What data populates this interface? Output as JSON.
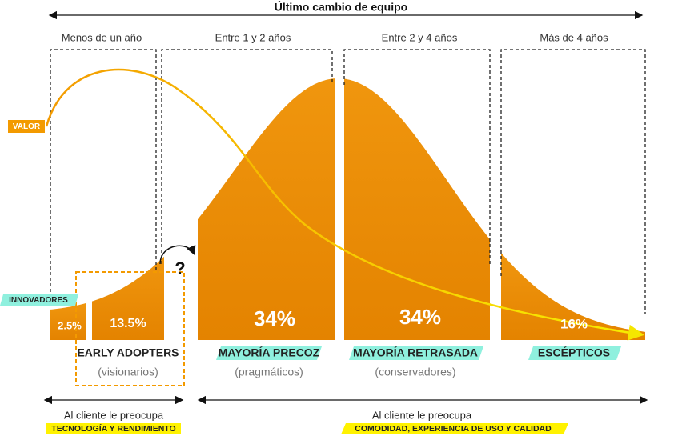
{
  "header": {
    "title": "Último cambio de equipo"
  },
  "periods": [
    "Menos de un año",
    "Entre 1 y 2 años",
    "Entre 2 y 4 años",
    "Más de 4 años"
  ],
  "curve_labels": {
    "value": "VALOR",
    "innovators": "INNOVADORES"
  },
  "segments": [
    {
      "percent": "2.5%"
    },
    {
      "percent": "13.5%",
      "label": "EARLY ADOPTERS",
      "sublabel": "(visionarios)"
    },
    {
      "percent": "34%",
      "label": "MAYORÍA PRECOZ",
      "sublabel": "(pragmáticos)"
    },
    {
      "percent": "34%",
      "label": "MAYORÍA RETRASADA",
      "sublabel": "(conservadores)"
    },
    {
      "percent": "16%",
      "label": "ESCÉPTICOS"
    }
  ],
  "question": "?",
  "footer": [
    {
      "text": "Al cliente le preocupa",
      "highlight": "TECNOLOGÍA Y RENDIMIENTO"
    },
    {
      "text": "Al cliente le preocupa",
      "highlight": "COMODIDAD, EXPERIENCIA DE USO Y CALIDAD"
    }
  ]
}
